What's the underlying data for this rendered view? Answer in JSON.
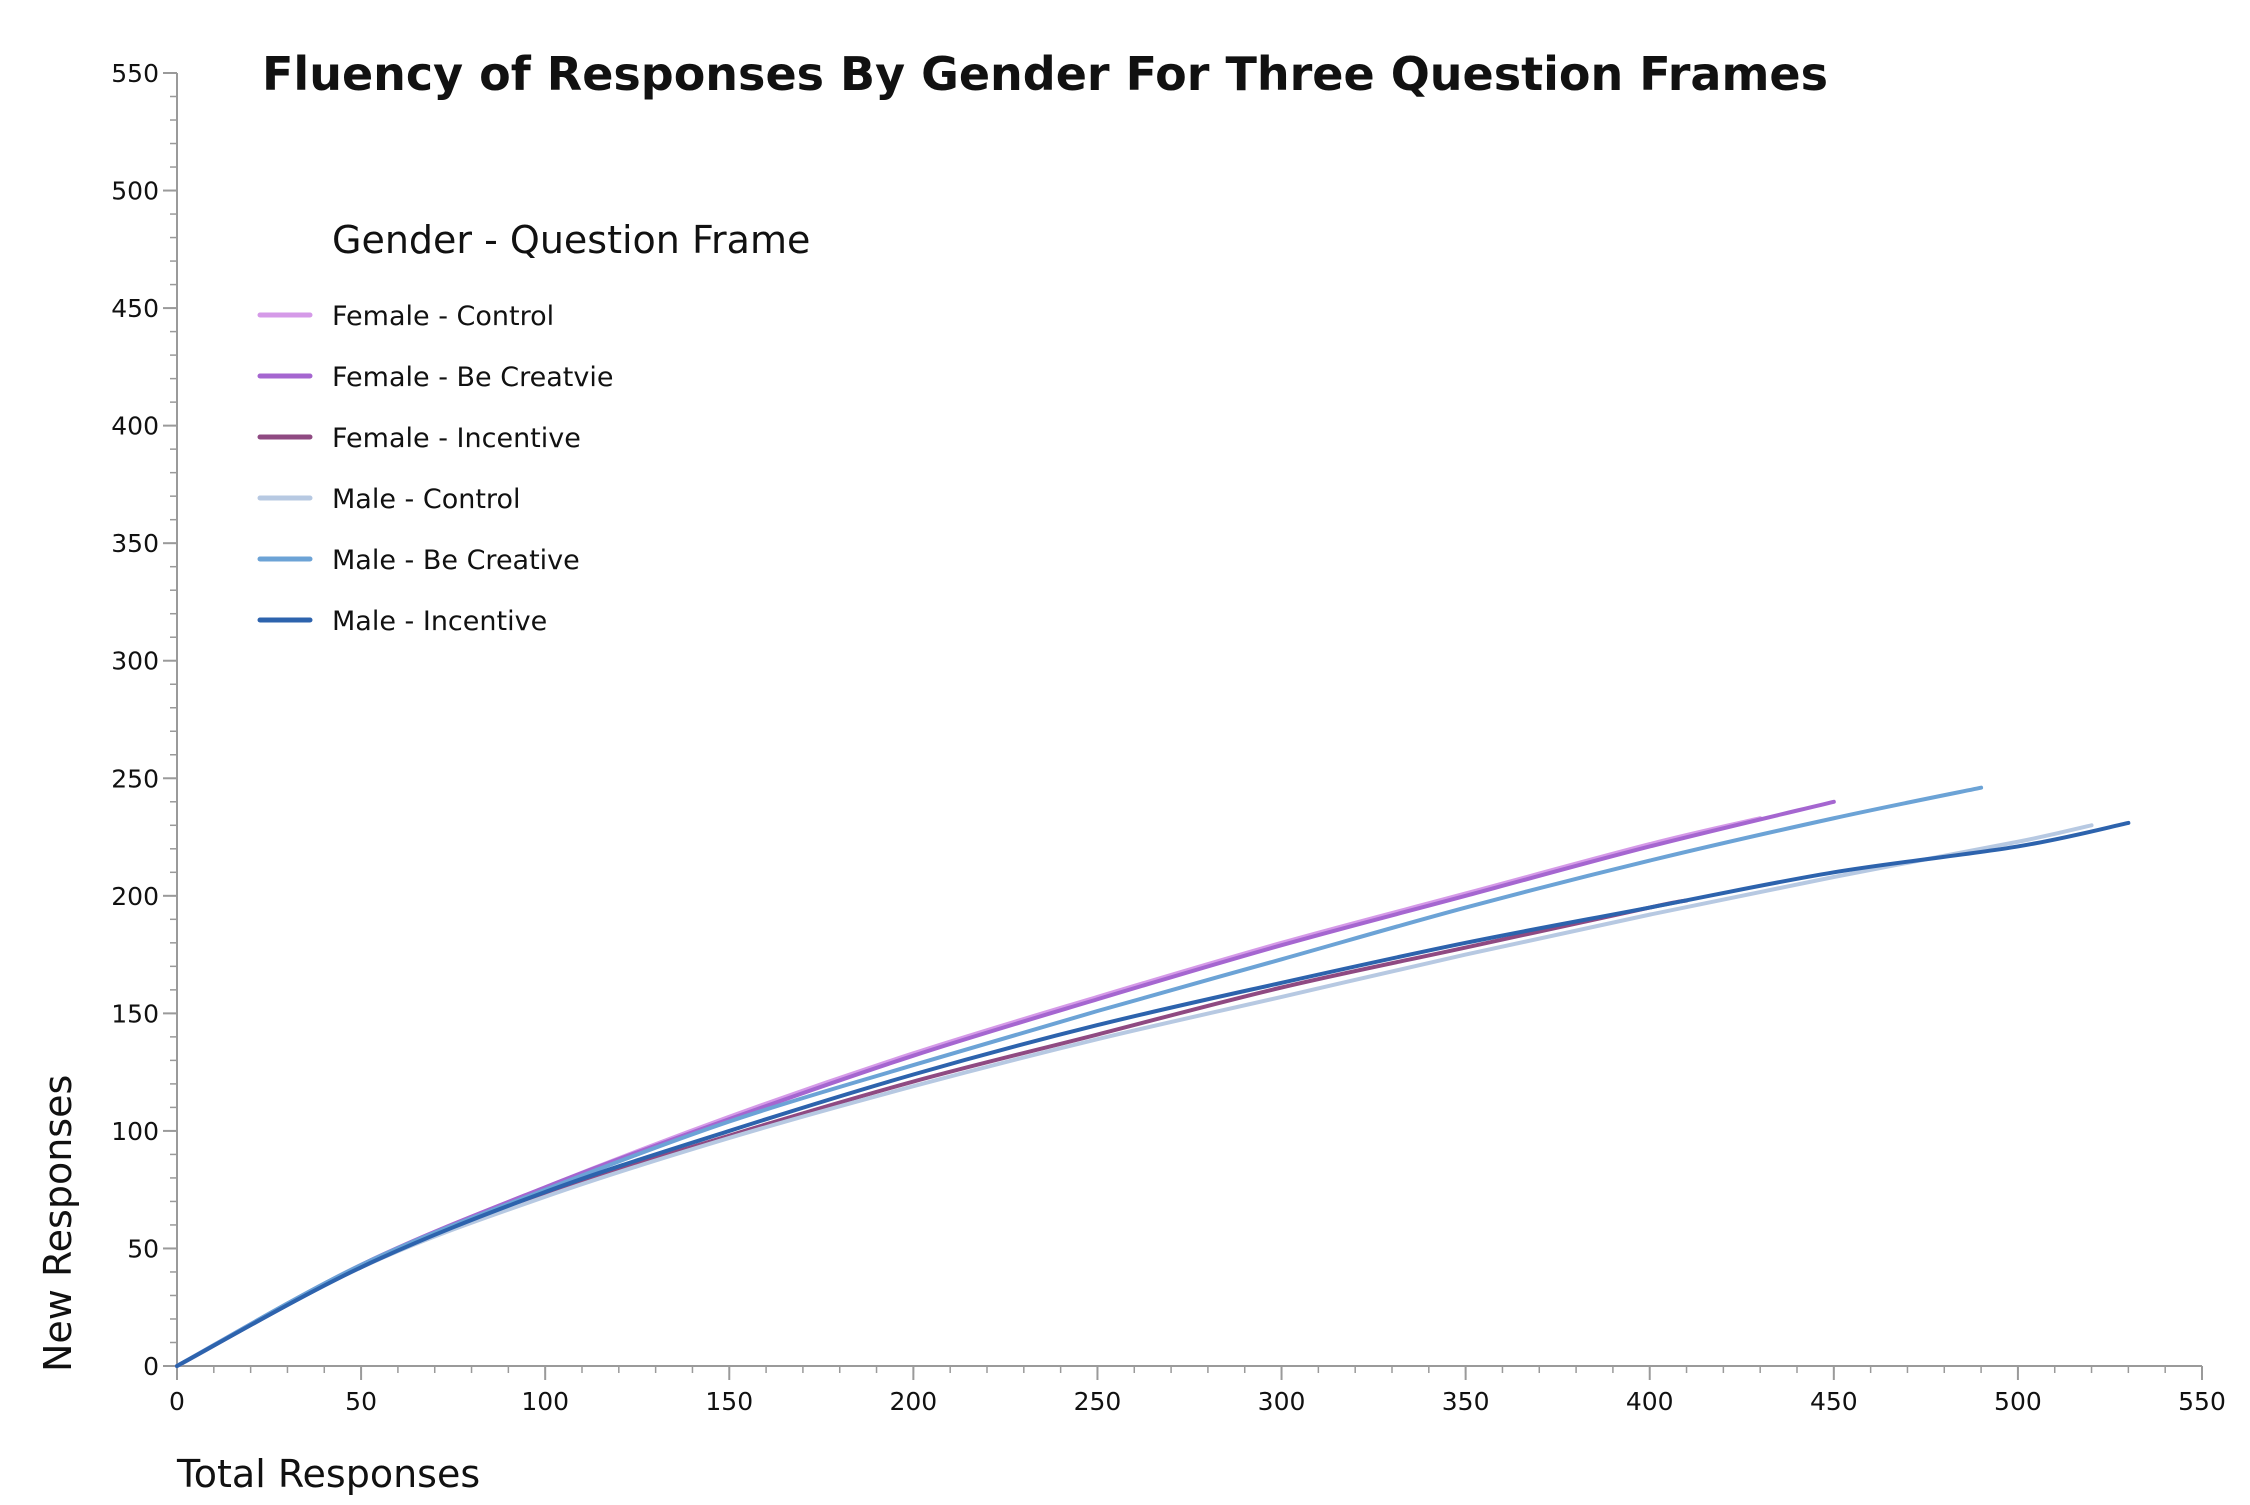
{
  "chart_data": {
    "type": "line",
    "title": "Fluency of Responses By Gender For Three Question Frames",
    "xlabel": "Total Responses",
    "ylabel": "New Responses",
    "xlim": [
      0,
      550
    ],
    "ylim": [
      0,
      550
    ],
    "xticks": [
      0,
      50,
      100,
      150,
      200,
      250,
      300,
      350,
      400,
      450,
      500,
      550
    ],
    "yticks": [
      0,
      50,
      100,
      150,
      200,
      250,
      300,
      350,
      400,
      450,
      500,
      550
    ],
    "grid": false,
    "legend": {
      "title": "Gender - Question Frame",
      "placement": "top-left"
    },
    "series": [
      {
        "name": "Female - Control",
        "color": "#d59ae8",
        "x": [
          0,
          50,
          100,
          150,
          200,
          250,
          300,
          350,
          400,
          430
        ],
        "y": [
          0,
          43,
          76,
          106,
          133,
          157,
          180,
          201,
          222,
          233
        ]
      },
      {
        "name": "Female - Be Creatvie",
        "color": "#a566d0",
        "x": [
          0,
          50,
          100,
          150,
          200,
          250,
          300,
          350,
          400,
          450
        ],
        "y": [
          0,
          43,
          76,
          105,
          132,
          156,
          179,
          200,
          221,
          240
        ]
      },
      {
        "name": "Female - Incentive",
        "color": "#8f4a82",
        "x": [
          0,
          50,
          100,
          150,
          200,
          250,
          300,
          350,
          400,
          410
        ],
        "y": [
          0,
          42,
          73,
          98,
          121,
          141,
          161,
          178,
          195,
          198
        ]
      },
      {
        "name": "Male - Control",
        "color": "#b7c9e2",
        "x": [
          0,
          50,
          100,
          150,
          200,
          250,
          300,
          350,
          400,
          450,
          500,
          520
        ],
        "y": [
          0,
          42,
          72,
          97,
          119,
          139,
          157,
          175,
          192,
          208,
          223,
          230
        ]
      },
      {
        "name": "Male - Be Creative",
        "color": "#6ca3d6",
        "x": [
          0,
          50,
          100,
          150,
          200,
          250,
          300,
          350,
          400,
          450,
          490
        ],
        "y": [
          0,
          43,
          75,
          104,
          128,
          151,
          173,
          195,
          215,
          233,
          246
        ]
      },
      {
        "name": "Male - Incentive",
        "color": "#2d63ad",
        "x": [
          0,
          50,
          100,
          150,
          200,
          250,
          300,
          350,
          400,
          450,
          500,
          530
        ],
        "y": [
          0,
          42,
          74,
          100,
          124,
          145,
          163,
          180,
          195,
          210,
          221,
          231
        ]
      }
    ]
  }
}
